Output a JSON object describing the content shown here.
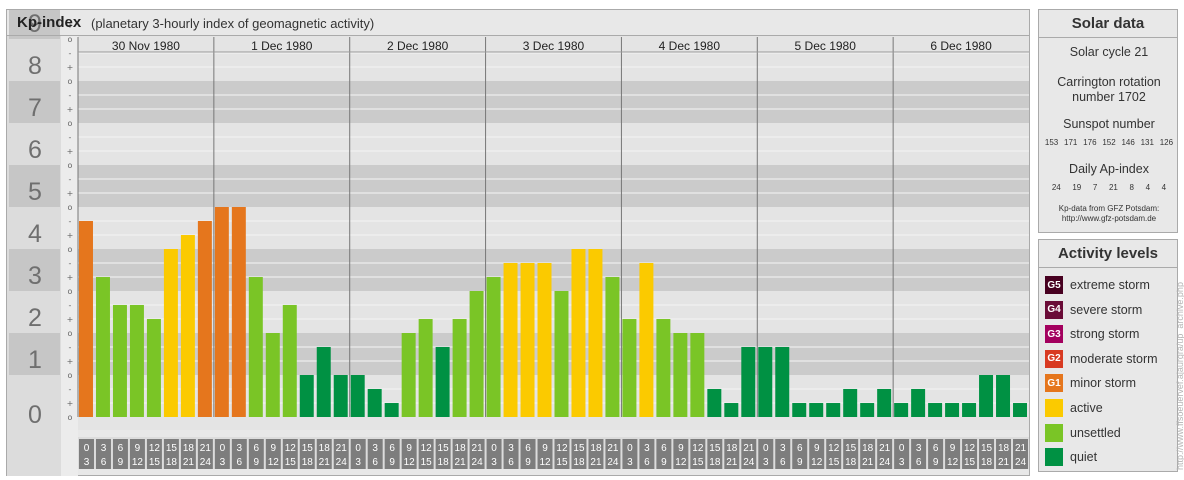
{
  "header": {
    "title": "Kp-index",
    "subtitle": "(planetary 3-hourly index of geomagnetic activity)"
  },
  "chart_data": {
    "type": "bar",
    "title": "Kp-index",
    "y_axis": {
      "ticks": [
        "0",
        "1",
        "2",
        "3",
        "4",
        "5",
        "6",
        "7",
        "8",
        "9"
      ],
      "range": [
        0,
        9
      ],
      "sub_ticks": [
        "-",
        "o",
        "+"
      ]
    },
    "days": [
      "30 Nov 1980",
      "1 Dec 1980",
      "2 Dec 1980",
      "3 Dec 1980",
      "4 Dec 1980",
      "5 Dec 1980",
      "6 Dec 1980"
    ],
    "intervals": [
      {
        "from": "0",
        "to": "3"
      },
      {
        "from": "3",
        "to": "6"
      },
      {
        "from": "6",
        "to": "9"
      },
      {
        "from": "9",
        "to": "12"
      },
      {
        "from": "12",
        "to": "15"
      },
      {
        "from": "15",
        "to": "18"
      },
      {
        "from": "18",
        "to": "21"
      },
      {
        "from": "21",
        "to": "24"
      }
    ],
    "values": [
      [
        4.667,
        3.333,
        2.667,
        2.667,
        2.333,
        4.0,
        4.333,
        4.667
      ],
      [
        5.0,
        5.0,
        3.333,
        2.0,
        2.667,
        1.0,
        1.667,
        1.0
      ],
      [
        1.0,
        0.667,
        0.333,
        2.0,
        2.333,
        1.667,
        2.333,
        3.0
      ],
      [
        3.333,
        3.667,
        3.667,
        3.667,
        3.0,
        4.0,
        4.0,
        3.333
      ],
      [
        2.333,
        3.667,
        2.333,
        2.0,
        2.0,
        0.667,
        0.333,
        1.667
      ],
      [
        1.667,
        1.667,
        0.0,
        0.0,
        0.0,
        0.667,
        0.0,
        0.667
      ],
      [
        0.333,
        0.667,
        0.333,
        0.333,
        0.333,
        1.0,
        1.0,
        0.0
      ]
    ],
    "colors": {
      "quiet": "#009143",
      "unsettled": "#7ac526",
      "active": "#fbca00",
      "minor": "#e5761d",
      "moderate": "#d83a21",
      "strong": "#a3005e",
      "severe": "#6a0b37",
      "extreme": "#470020"
    },
    "grid": true,
    "legend_position": "right"
  },
  "solar": {
    "title": "Solar data",
    "cycle": "Solar cycle 21",
    "carrington_line1": "Carrington rotation",
    "carrington_line2": "number 1702",
    "sunspot_label": "Sunspot number",
    "sunspot_values": [
      "153",
      "171",
      "176",
      "152",
      "146",
      "131",
      "126"
    ],
    "ap_label": "Daily Ap-index",
    "ap_values": [
      "24",
      "19",
      "7",
      "21",
      "8",
      "4",
      "4"
    ],
    "source_line1": "Kp-data from GFZ Potsdam:",
    "source_line2": "http://www.gfz-potsdam.de"
  },
  "levels": {
    "title": "Activity levels",
    "items": [
      {
        "badge": "G5",
        "label": "extreme storm",
        "color": "#470020"
      },
      {
        "badge": "G4",
        "label": "severe storm",
        "color": "#6a0b37"
      },
      {
        "badge": "G3",
        "label": "strong storm",
        "color": "#a3005e"
      },
      {
        "badge": "G2",
        "label": "moderate storm",
        "color": "#d83a21"
      },
      {
        "badge": "G1",
        "label": "minor storm",
        "color": "#e5761d"
      },
      {
        "badge": "",
        "label": "active",
        "color": "#fbca00"
      },
      {
        "badge": "",
        "label": "unsettled",
        "color": "#7ac526"
      },
      {
        "badge": "",
        "label": "quiet",
        "color": "#009143"
      }
    ]
  },
  "watermark": "http://www.ffsoeuervef.ajaurgra/up_archive.php"
}
